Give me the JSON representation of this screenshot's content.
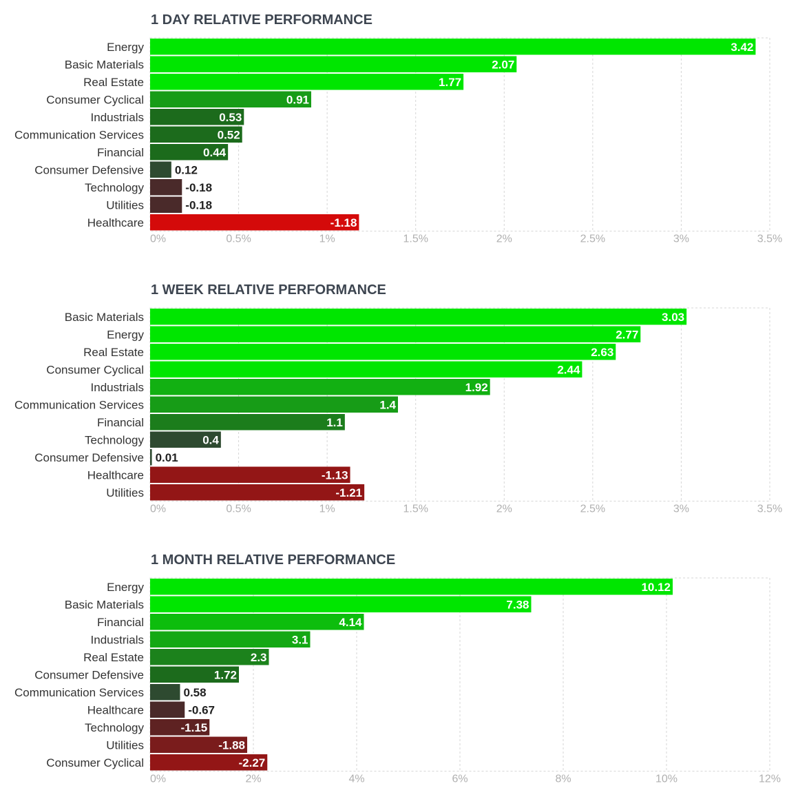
{
  "chart_data": [
    {
      "type": "bar",
      "orientation": "horizontal",
      "title": "1 DAY RELATIVE PERFORMANCE",
      "categories": [
        "Energy",
        "Basic Materials",
        "Real Estate",
        "Consumer Cyclical",
        "Industrials",
        "Communication Services",
        "Financial",
        "Consumer Defensive",
        "Technology",
        "Utilities",
        "Healthcare"
      ],
      "values": [
        3.42,
        2.07,
        1.77,
        0.91,
        0.53,
        0.52,
        0.44,
        0.12,
        -0.18,
        -0.18,
        -1.18
      ],
      "value_labels": [
        "3.42",
        "2.07",
        "1.77",
        "0.91",
        "0.53",
        "0.52",
        "0.44",
        "0.12",
        "-0.18",
        "-0.18",
        "-1.18"
      ],
      "bar_lengths": "absolute value",
      "xlim": [
        0,
        3.5
      ],
      "xticks": [
        0,
        0.5,
        1,
        1.5,
        2,
        2.5,
        3,
        3.5
      ],
      "xtick_labels": [
        "0%",
        "0.5%",
        "1%",
        "1.5%",
        "2%",
        "2.5%",
        "3%",
        "3.5%"
      ],
      "bar_colors": [
        "#00e600",
        "#00e600",
        "#00e600",
        "#179c17",
        "#1c6b1c",
        "#1c6b1c",
        "#1c6b1c",
        "#2e4a30",
        "#4a2a2a",
        "#4a2a2a",
        "#d40a0a"
      ],
      "grid": true
    },
    {
      "type": "bar",
      "orientation": "horizontal",
      "title": "1 WEEK RELATIVE PERFORMANCE",
      "categories": [
        "Basic Materials",
        "Energy",
        "Real Estate",
        "Consumer Cyclical",
        "Industrials",
        "Communication Services",
        "Financial",
        "Technology",
        "Consumer Defensive",
        "Healthcare",
        "Utilities"
      ],
      "values": [
        3.03,
        2.77,
        2.63,
        2.44,
        1.92,
        1.4,
        1.1,
        0.4,
        0.01,
        -1.13,
        -1.21
      ],
      "value_labels": [
        "3.03",
        "2.77",
        "2.63",
        "2.44",
        "1.92",
        "1.4",
        "1.1",
        "0.4",
        "0.01",
        "-1.13",
        "-1.21"
      ],
      "bar_lengths": "absolute value",
      "xlim": [
        0,
        3.5
      ],
      "xticks": [
        0,
        0.5,
        1,
        1.5,
        2,
        2.5,
        3,
        3.5
      ],
      "xtick_labels": [
        "0%",
        "0.5%",
        "1%",
        "1.5%",
        "2%",
        "2.5%",
        "3%",
        "3.5%"
      ],
      "bar_colors": [
        "#00e600",
        "#00e600",
        "#00e600",
        "#00e600",
        "#12b012",
        "#179c17",
        "#1c7d1c",
        "#2e4a30",
        "#2e4a30",
        "#931616",
        "#931616"
      ],
      "grid": true
    },
    {
      "type": "bar",
      "orientation": "horizontal",
      "title": "1 MONTH RELATIVE PERFORMANCE",
      "categories": [
        "Energy",
        "Basic Materials",
        "Financial",
        "Industrials",
        "Real Estate",
        "Consumer Defensive",
        "Communication Services",
        "Healthcare",
        "Technology",
        "Utilities",
        "Consumer Cyclical"
      ],
      "values": [
        10.12,
        7.38,
        4.14,
        3.1,
        2.3,
        1.72,
        0.58,
        -0.67,
        -1.15,
        -1.88,
        -2.27
      ],
      "value_labels": [
        "10.12",
        "7.38",
        "4.14",
        "3.1",
        "2.3",
        "1.72",
        "0.58",
        "-0.67",
        "-1.15",
        "-1.88",
        "-2.27"
      ],
      "bar_lengths": "absolute value",
      "xlim": [
        0,
        12
      ],
      "xticks": [
        0,
        2,
        4,
        6,
        8,
        10,
        12
      ],
      "xtick_labels": [
        "0%",
        "2%",
        "4%",
        "6%",
        "8%",
        "10%",
        "12%"
      ],
      "bar_colors": [
        "#00e600",
        "#00e600",
        "#0dbd0d",
        "#14a814",
        "#1c821c",
        "#1c6b1c",
        "#2e4a30",
        "#4a2a2a",
        "#5e2222",
        "#7a1c1c",
        "#931616"
      ],
      "grid": true
    }
  ]
}
